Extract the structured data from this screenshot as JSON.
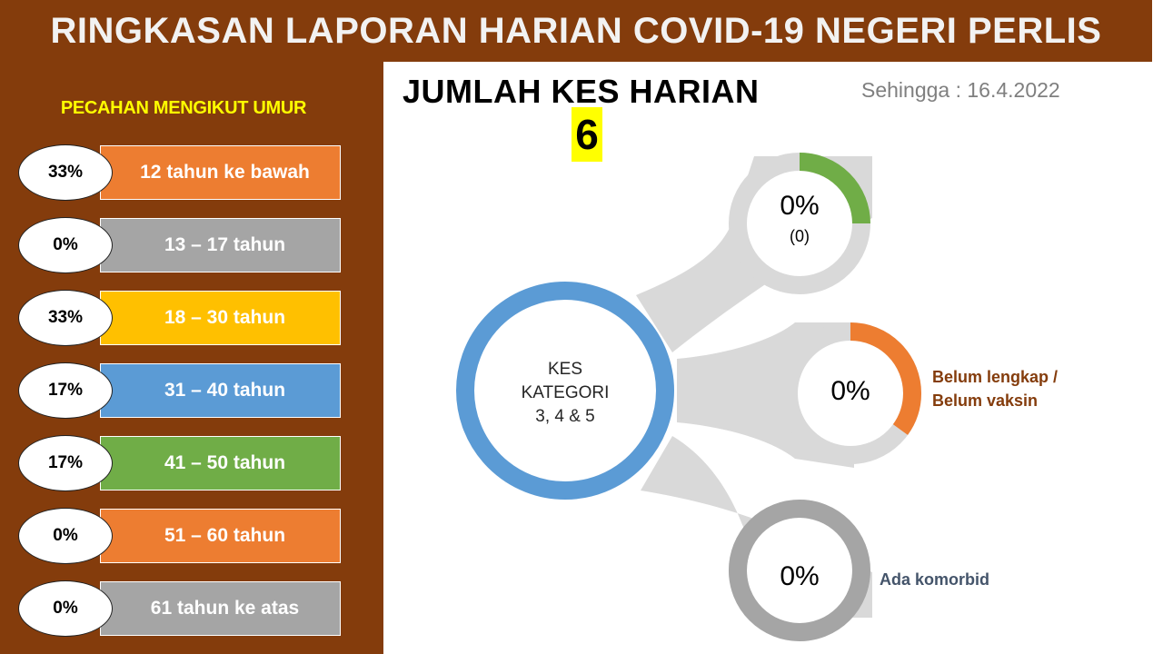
{
  "header": {
    "title": "RINGKASAN LAPORAN HARIAN COVID-19 NEGERI PERLIS"
  },
  "sidebar": {
    "title": "PECAHAN MENGIKUT UMUR",
    "age_groups": [
      {
        "percent": "33%",
        "label": "12 tahun ke bawah",
        "color": "#ed7d31"
      },
      {
        "percent": "0%",
        "label": "13 – 17 tahun",
        "color": "#a5a5a5"
      },
      {
        "percent": "33%",
        "label": "18 – 30 tahun",
        "color": "#ffc000"
      },
      {
        "percent": "17%",
        "label": "31 – 40 tahun",
        "color": "#5b9bd5"
      },
      {
        "percent": "17%",
        "label": "41 – 50 tahun",
        "color": "#70ad47"
      },
      {
        "percent": "0%",
        "label": "51 – 60 tahun",
        "color": "#ed7d31"
      },
      {
        "percent": "0%",
        "label": "61 tahun ke atas",
        "color": "#a5a5a5"
      }
    ]
  },
  "summary": {
    "heading": "JUMLAH KES HARIAN",
    "count": "6",
    "as_of": "Sehingga : 16.4.2022"
  },
  "center": {
    "line1": "KES",
    "line2": "KATEGORI",
    "line3": "3, 4 & 5",
    "color": "#5b9bd5"
  },
  "satellites": [
    {
      "percent": "0%",
      "sub": "(0)",
      "label_line1": "",
      "label_line2": "",
      "ring_color": "#70ad47",
      "fill": 0.25
    },
    {
      "percent": "0%",
      "sub": "",
      "label_line1": "Belum lengkap /",
      "label_line2": "Belum vaksin",
      "ring_color": "#ed7d31",
      "label_color": "#843c0c",
      "fill": 0.35
    },
    {
      "percent": "0%",
      "sub": "",
      "label_line1": "Ada komorbid",
      "label_line2": "",
      "ring_color": "#a5a5a5",
      "label_color": "#44546a",
      "fill": 1.0
    }
  ]
}
